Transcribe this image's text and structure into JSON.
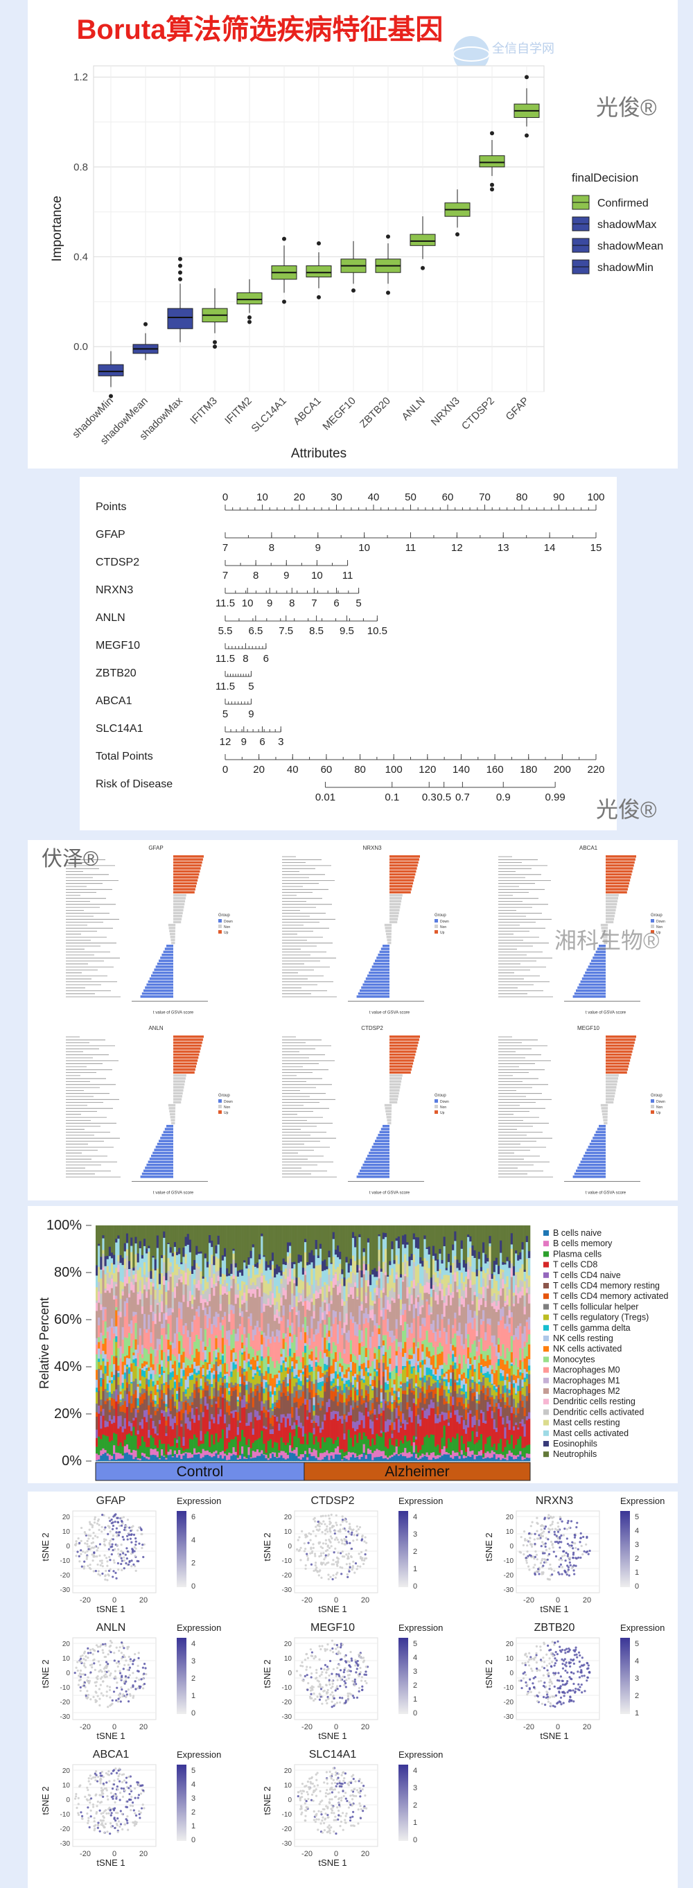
{
  "header": {
    "title": "Boruta算法筛选疾病特征基因"
  },
  "watermarks": {
    "guangjun": "光俊®",
    "fuze": "伏泽®",
    "xiangke": "湘科生物®",
    "logo_text": "全信自学网"
  },
  "boruta": {
    "chart_data": {
      "type": "box",
      "title": "Boruta算法筛选疾病特征基因",
      "xlabel": "Attributes",
      "ylabel": "Importance",
      "ylim": [
        -0.2,
        1.25
      ],
      "yticks": [
        0.0,
        0.4,
        0.8,
        1.2
      ],
      "grid": true,
      "legend_title": "finalDecision",
      "legend": [
        {
          "name": "Confirmed",
          "color": "#8ec34e"
        },
        {
          "name": "shadowMax",
          "color": "#3b4aa0"
        },
        {
          "name": "shadowMean",
          "color": "#3b4aa0"
        },
        {
          "name": "shadowMin",
          "color": "#3b4aa0"
        }
      ],
      "categories": [
        "shadowMin",
        "shadowMean",
        "shadowMax",
        "IFITM3",
        "IFITM2",
        "SLC14A1",
        "ABCA1",
        "MEGF10",
        "ZBTB20",
        "ANLN",
        "NRXN3",
        "CTDSP2",
        "GFAP"
      ],
      "decision": [
        "shadowMin",
        "shadowMean",
        "shadowMax",
        "Confirmed",
        "Confirmed",
        "Confirmed",
        "Confirmed",
        "Confirmed",
        "Confirmed",
        "Confirmed",
        "Confirmed",
        "Confirmed",
        "Confirmed"
      ],
      "q1": [
        -0.13,
        -0.03,
        0.08,
        0.11,
        0.19,
        0.3,
        0.31,
        0.33,
        0.33,
        0.45,
        0.58,
        0.8,
        1.02
      ],
      "median": [
        -0.11,
        -0.01,
        0.13,
        0.14,
        0.21,
        0.33,
        0.33,
        0.36,
        0.36,
        0.47,
        0.61,
        0.82,
        1.05
      ],
      "q3": [
        -0.08,
        0.01,
        0.17,
        0.17,
        0.24,
        0.36,
        0.36,
        0.39,
        0.39,
        0.5,
        0.64,
        0.85,
        1.08
      ],
      "whisker_low": [
        -0.18,
        -0.06,
        0.02,
        0.06,
        0.15,
        0.24,
        0.26,
        0.28,
        0.28,
        0.39,
        0.53,
        0.76,
        0.98
      ],
      "whisker_high": [
        -0.02,
        0.06,
        0.28,
        0.26,
        0.3,
        0.45,
        0.42,
        0.47,
        0.46,
        0.58,
        0.7,
        0.92,
        1.15
      ],
      "outliers": [
        [
          -0.22
        ],
        [
          0.1
        ],
        [
          0.3,
          0.33,
          0.36,
          0.39
        ],
        [
          0.0,
          0.02
        ],
        [
          0.11,
          0.13
        ],
        [
          0.48,
          0.2
        ],
        [
          0.22,
          0.46
        ],
        [
          0.25
        ],
        [
          0.24,
          0.49
        ],
        [
          0.35
        ],
        [
          0.5
        ],
        [
          0.7,
          0.72,
          0.95
        ],
        [
          1.2,
          0.94
        ]
      ]
    }
  },
  "nomogram": {
    "chart_data": {
      "type": "nomogram",
      "rows": [
        {
          "label": "Points",
          "ticks": [
            "0",
            "10",
            "20",
            "30",
            "40",
            "50",
            "60",
            "70",
            "80",
            "90",
            "100"
          ],
          "start": 0,
          "end": 1,
          "minor": 50
        },
        {
          "label": "GFAP",
          "ticks": [
            "7",
            "8",
            "9",
            "10",
            "11",
            "12",
            "13",
            "14",
            "15"
          ],
          "start": 0,
          "end": 1,
          "minor": 16
        },
        {
          "label": "CTDSP2",
          "ticks": [
            "7",
            "8",
            "9",
            "10",
            "11"
          ],
          "start": 0,
          "end": 0.33,
          "minor": 8
        },
        {
          "label": "NRXN3",
          "ticks": [
            "11.5",
            "10",
            "9",
            "8",
            "7",
            "6",
            "5"
          ],
          "start": 0,
          "end": 0.36,
          "minor": 13
        },
        {
          "label": "ANLN",
          "ticks": [
            "5.5",
            "6.5",
            "7.5",
            "8.5",
            "9.5",
            "10.5"
          ],
          "start": 0,
          "end": 0.41,
          "minor": 11
        },
        {
          "label": "MEGF10",
          "ticks": [
            "11.5",
            "8",
            "6"
          ],
          "start": 0,
          "end": 0.11,
          "minor": 12
        },
        {
          "label": "ZBTB20",
          "ticks": [
            "11.5",
            "5"
          ],
          "start": 0,
          "end": 0.07,
          "minor": 10
        },
        {
          "label": "ABCA1",
          "ticks": [
            "5",
            "9"
          ],
          "start": 0,
          "end": 0.07,
          "minor": 8
        },
        {
          "label": "SLC14A1",
          "ticks": [
            "12",
            "9",
            "6",
            "3"
          ],
          "start": 0,
          "end": 0.15,
          "minor": 10
        },
        {
          "label": "Total Points",
          "ticks": [
            "0",
            "20",
            "40",
            "60",
            "80",
            "100",
            "120",
            "140",
            "160",
            "180",
            "200",
            "220"
          ],
          "start": 0,
          "end": 1,
          "minor": 22
        },
        {
          "label": "Risk of Disease",
          "ticks": [
            "0.01",
            "0.1",
            "0.3",
            "0.5",
            "0.7",
            "0.9",
            "0.99"
          ],
          "positions": [
            0.27,
            0.45,
            0.55,
            0.59,
            0.64,
            0.75,
            0.89
          ],
          "start": 0.27,
          "end": 0.89,
          "minor": 0
        }
      ]
    }
  },
  "gsea": {
    "xlabel": "t value of GSVA score",
    "legend_title": "Group",
    "legend_items": [
      "Down",
      "Non",
      "Up"
    ],
    "colors": {
      "up": "#e05b2c",
      "non": "#d0d0d0",
      "down": "#5a7de0"
    },
    "panels": [
      {
        "title": "GFAP"
      },
      {
        "title": "NRXN3"
      },
      {
        "title": "ABCA1"
      },
      {
        "title": "ANLN"
      },
      {
        "title": "CTDSP2"
      },
      {
        "title": "MEGF10"
      }
    ]
  },
  "immune": {
    "chart_data": {
      "type": "stacked-bar",
      "ylabel": "Relative Percent",
      "yticks": [
        "0%",
        "20%",
        "40%",
        "60%",
        "80%",
        "100%"
      ],
      "groups": [
        {
          "name": "Control",
          "color": "#6f8ce8",
          "fraction": 0.48
        },
        {
          "name": "Alzheimer",
          "color": "#c85a12",
          "fraction": 0.52
        }
      ],
      "series": [
        {
          "name": "B cells naive",
          "color": "#1f77b4",
          "mean": 0.02
        },
        {
          "name": "B cells memory",
          "color": "#e377c2",
          "mean": 0.02
        },
        {
          "name": "Plasma cells",
          "color": "#2ca02c",
          "mean": 0.05
        },
        {
          "name": "T cells CD8",
          "color": "#d62728",
          "mean": 0.08
        },
        {
          "name": "T cells CD4 naive",
          "color": "#9467bd",
          "mean": 0.03
        },
        {
          "name": "T cells CD4 memory resting",
          "color": "#8c564b",
          "mean": 0.06
        },
        {
          "name": "T cells CD4 memory activated",
          "color": "#e6550d",
          "mean": 0.03
        },
        {
          "name": "T cells follicular helper",
          "color": "#7f7f7f",
          "mean": 0.03
        },
        {
          "name": "T cells regulatory (Tregs)",
          "color": "#bcbd22",
          "mean": 0.04
        },
        {
          "name": "T cells gamma delta",
          "color": "#17becf",
          "mean": 0.02
        },
        {
          "name": "NK cells resting",
          "color": "#aec7e8",
          "mean": 0.03
        },
        {
          "name": "NK cells activated",
          "color": "#ff7f0e",
          "mean": 0.04
        },
        {
          "name": "Monocytes",
          "color": "#98df8a",
          "mean": 0.05
        },
        {
          "name": "Macrophages M0",
          "color": "#ff9896",
          "mean": 0.08
        },
        {
          "name": "Macrophages M1",
          "color": "#c5b0d5",
          "mean": 0.04
        },
        {
          "name": "Macrophages M2",
          "color": "#c49c94",
          "mean": 0.1
        },
        {
          "name": "Dendritic cells resting",
          "color": "#f7b6d2",
          "mean": 0.03
        },
        {
          "name": "Dendritic cells activated",
          "color": "#c7c7c7",
          "mean": 0.04
        },
        {
          "name": "Mast cells resting",
          "color": "#dbdb8d",
          "mean": 0.05
        },
        {
          "name": "Mast cells activated",
          "color": "#9edae5",
          "mean": 0.06
        },
        {
          "name": "Eosinophils",
          "color": "#393b79",
          "mean": 0.03
        },
        {
          "name": "Neutrophils",
          "color": "#637939",
          "mean": 0.13
        }
      ]
    }
  },
  "tsne": {
    "chart_data": {
      "type": "scatter",
      "xlabel": "tSNE 1",
      "ylabel": "tSNE 2",
      "xticks": [
        "-20",
        "0",
        "20"
      ],
      "yticks": [
        "20",
        "10",
        "0",
        "-10",
        "-20",
        "-30"
      ],
      "legend_title": "Expression",
      "panels": [
        {
          "gene": "GFAP",
          "scale": [
            "6",
            "4",
            "2",
            "0"
          ],
          "level": 0.35
        },
        {
          "gene": "CTDSP2",
          "scale": [
            "4",
            "3",
            "2",
            "1",
            "0"
          ],
          "level": 0.15
        },
        {
          "gene": "NRXN3",
          "scale": [
            "5",
            "4",
            "3",
            "2",
            "1",
            "0"
          ],
          "level": 0.45
        },
        {
          "gene": "ANLN",
          "scale": [
            "4",
            "3",
            "2",
            "1",
            "0"
          ],
          "level": 0.3
        },
        {
          "gene": "MEGF10",
          "scale": [
            "5",
            "4",
            "3",
            "2",
            "1",
            "0"
          ],
          "level": 0.3
        },
        {
          "gene": "ZBTB20",
          "scale": [
            "5",
            "4",
            "3",
            "2",
            "1"
          ],
          "level": 0.8
        },
        {
          "gene": "ABCA1",
          "scale": [
            "5",
            "4",
            "3",
            "2",
            "1",
            "0"
          ],
          "level": 0.3
        },
        {
          "gene": "SLC14A1",
          "scale": [
            "4",
            "3",
            "2",
            "1",
            "0"
          ],
          "level": 0.15
        }
      ]
    }
  }
}
